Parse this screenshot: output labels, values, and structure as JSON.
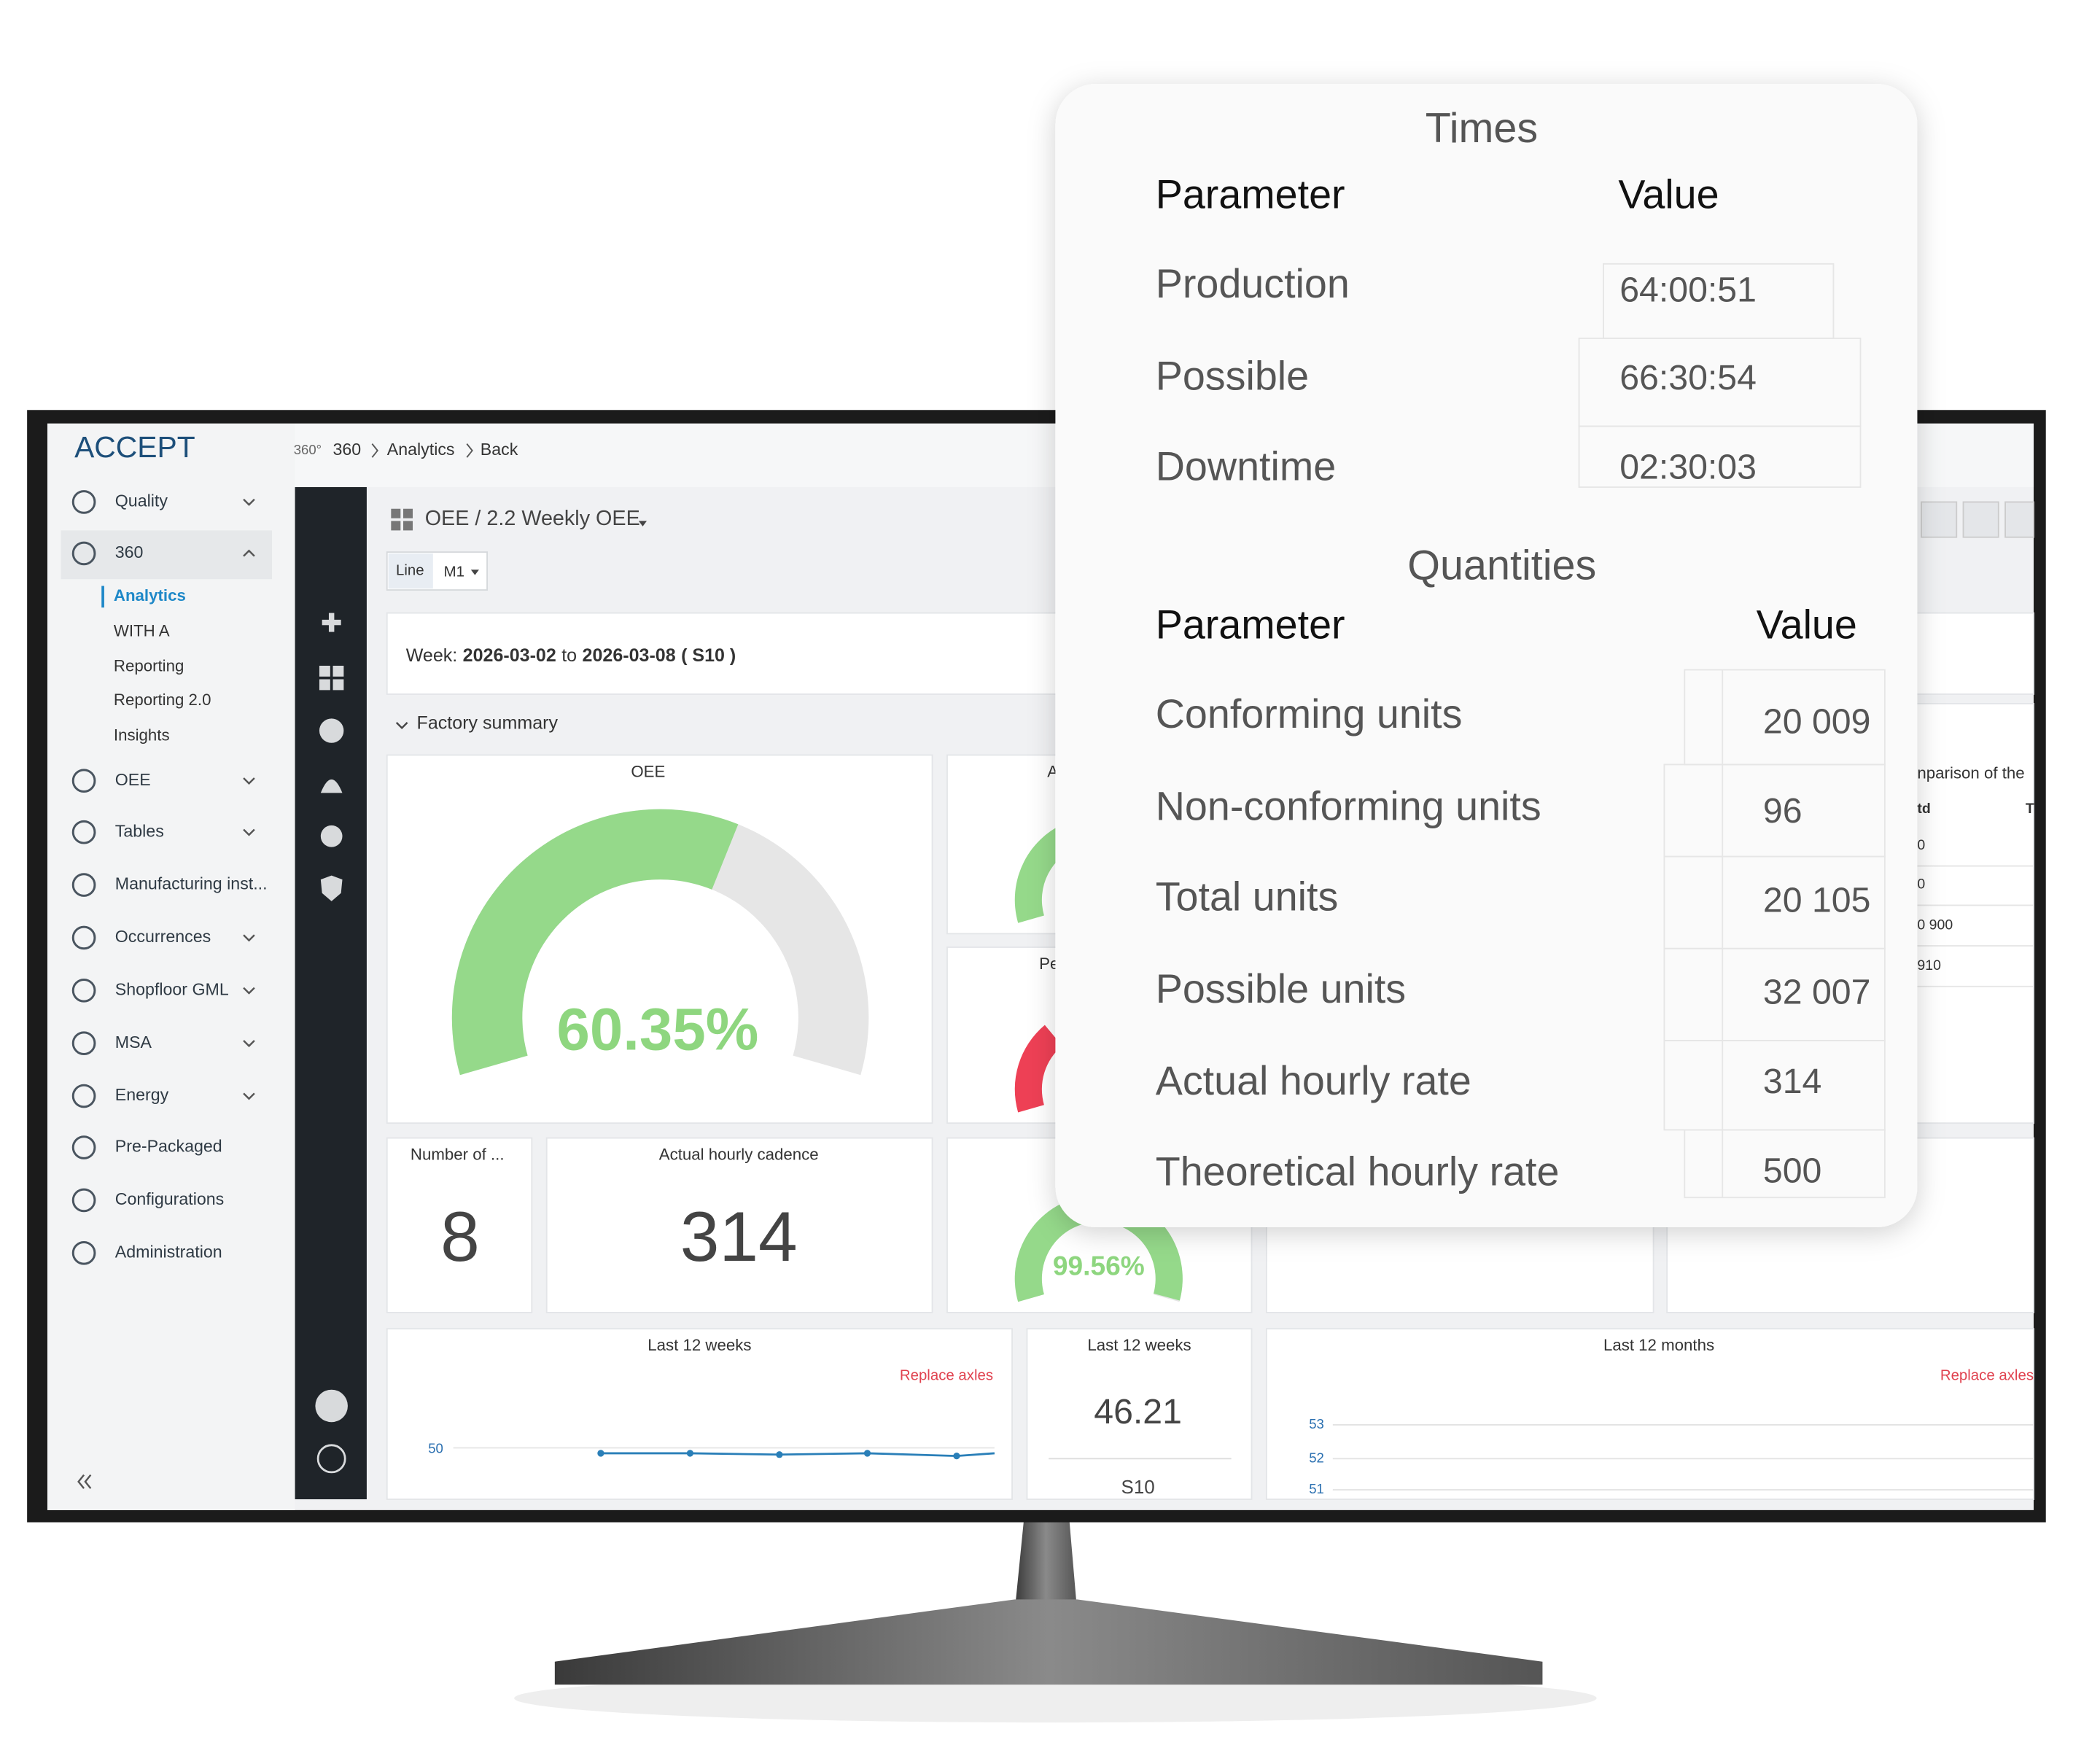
{
  "logo": "ACCEPT",
  "breadcrumb": {
    "icon": "360°",
    "root": "360",
    "items": [
      "Analytics",
      "Back"
    ]
  },
  "menu": [
    "Quality",
    "360",
    "OEE",
    "Tables",
    "Manufacturing inst...",
    "Occurrences",
    "Shopfloor GML",
    "MSA",
    "Energy",
    "Pre-Packaged",
    "Configurations",
    "Administration"
  ],
  "submenu": [
    "Analytics",
    "WITH A",
    "Reporting",
    "Reporting 2.0",
    "Insights"
  ],
  "dashboard": {
    "title": "OEE / 2.2 Weekly OEE",
    "filter_label": "Line",
    "filter_value": "M1",
    "week": {
      "label": "Week:",
      "start": "2026-03-02",
      "to": "to",
      "end": "2026-03-08",
      "code": "( S10 )"
    },
    "section": "Factory summary",
    "oee": {
      "title": "OEE",
      "value": "60.35%"
    },
    "partial_titles": [
      "A",
      "Pe"
    ],
    "count": {
      "title": "Number of ...",
      "value": "8"
    },
    "cadence": {
      "title": "Actual hourly cadence",
      "value": "314"
    },
    "quality_gauge": {
      "value": "99.56%"
    },
    "weekly_trend": {
      "title": "Last 12 weeks",
      "action": "Replace axles",
      "ytick": "50"
    },
    "weekly_value": {
      "title": "Last 12 weeks",
      "value": "46.21",
      "week": "S10"
    },
    "monthly_trend": {
      "title": "Last 12 months",
      "action": "Replace axles",
      "yticks": [
        "53",
        "52",
        "51"
      ]
    },
    "comparison": {
      "title": "nparison of the",
      "col1": "td",
      "col2": "T",
      "rows": [
        "0",
        "0",
        "0 900",
        "910"
      ]
    }
  },
  "popup": {
    "times": {
      "title": "Times",
      "headers": [
        "Parameter",
        "Value"
      ],
      "rows": [
        [
          "Production",
          "64:00:51"
        ],
        [
          "Possible",
          "66:30:54"
        ],
        [
          "Downtime",
          "02:30:03"
        ]
      ]
    },
    "quantities": {
      "title": "Quantities",
      "headers": [
        "Parameter",
        "Value"
      ],
      "rows": [
        [
          "Conforming units",
          "20 009"
        ],
        [
          "Non-conforming units",
          "96"
        ],
        [
          "Total units",
          "20 105"
        ],
        [
          "Possible units",
          "32 007"
        ],
        [
          "Actual hourly rate",
          "314"
        ],
        [
          "Theoretical hourly rate",
          "500"
        ]
      ]
    }
  }
}
